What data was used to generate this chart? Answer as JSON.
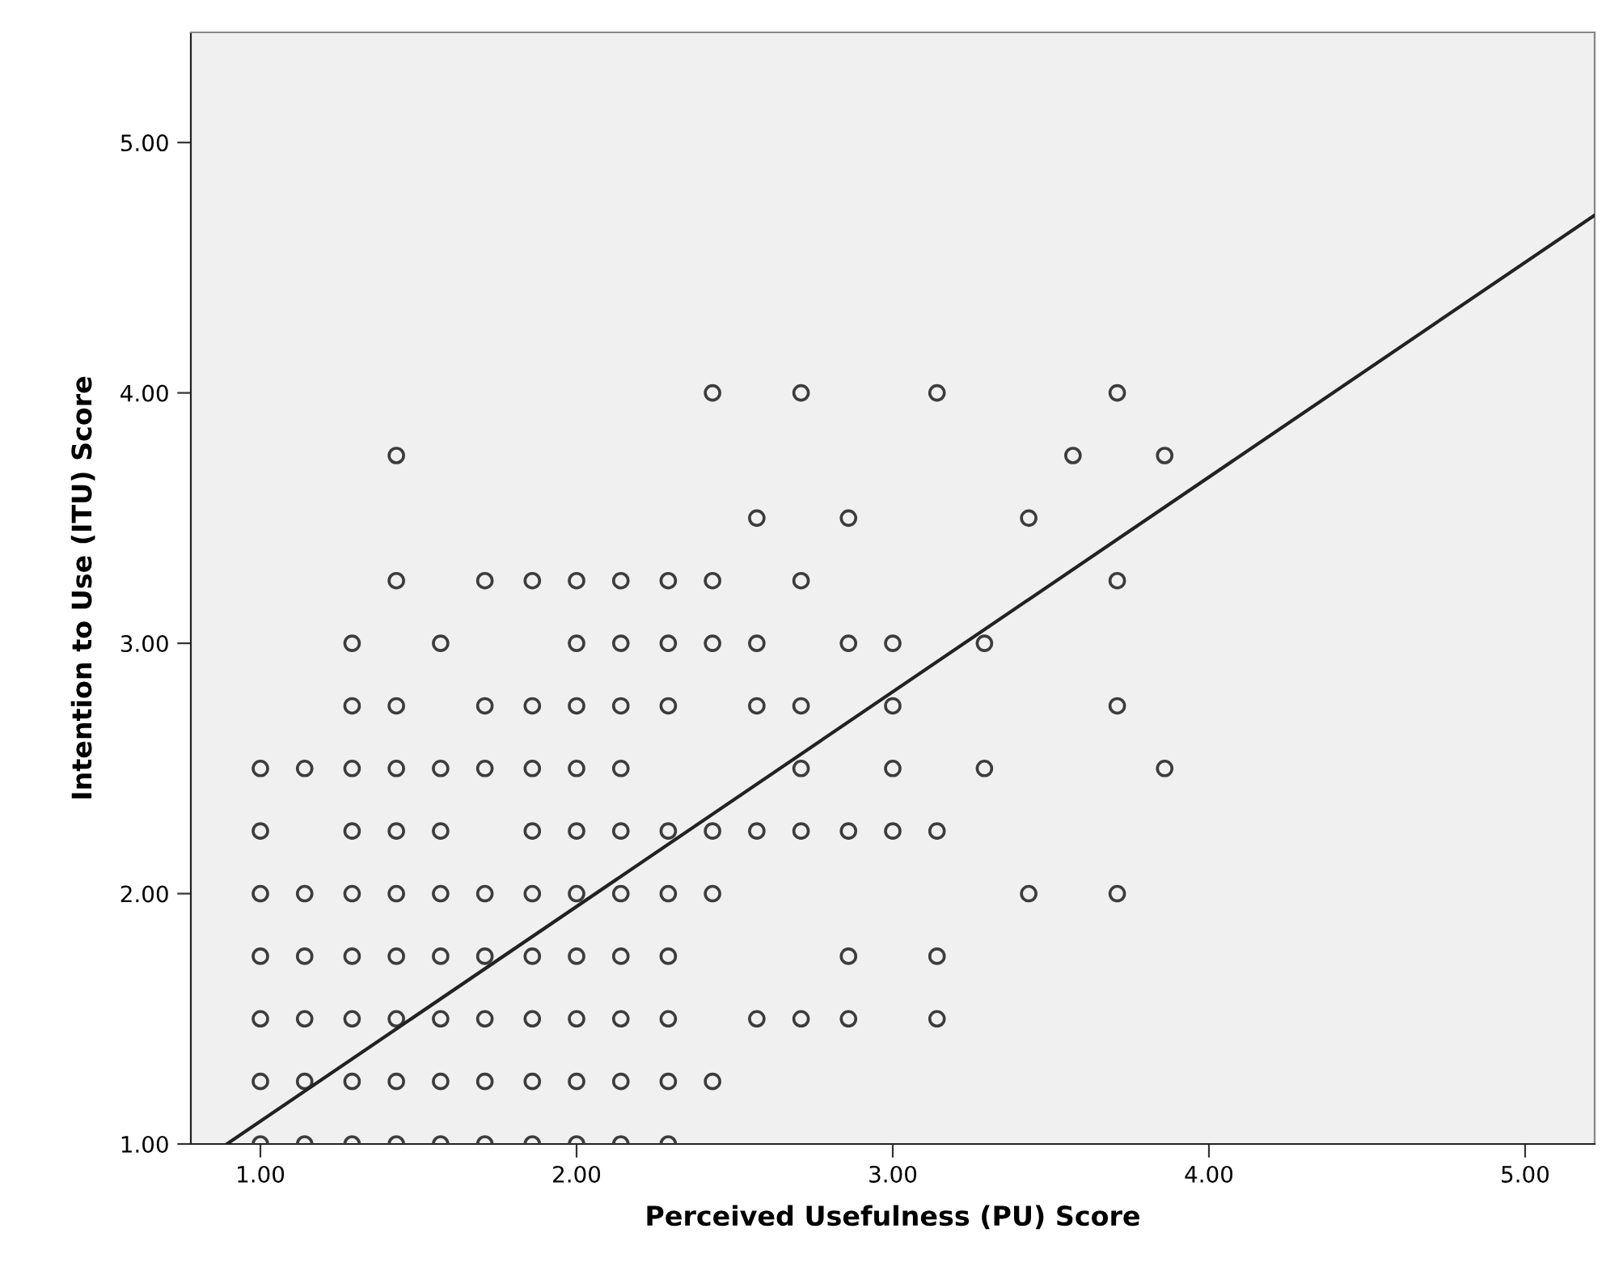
{
  "chart_data": {
    "type": "scatter",
    "xlabel": "Perceived Usefulness (PU) Score",
    "ylabel": "Intention to Use (ITU) Score",
    "xlim": [
      0.78,
      5.22
    ],
    "ylim": [
      1.0,
      5.44
    ],
    "xticks": [
      {
        "value": 1,
        "label": "1.00"
      },
      {
        "value": 2,
        "label": "2.00"
      },
      {
        "value": 3,
        "label": "3.00"
      },
      {
        "value": 4,
        "label": "4.00"
      },
      {
        "value": 5,
        "label": "5.00"
      }
    ],
    "yticks": [
      {
        "value": 1,
        "label": "1.00"
      },
      {
        "value": 2,
        "label": "2.00"
      },
      {
        "value": 3,
        "label": "3.00"
      },
      {
        "value": 4,
        "label": "4.00"
      },
      {
        "value": 5,
        "label": "5.00"
      }
    ],
    "grid": false,
    "legend": false,
    "marker": "circle",
    "series": [
      {
        "color": "#3c3c3c",
        "x": [
          2.43,
          2.71,
          3.14,
          3.71,
          1.43,
          3.57,
          3.86,
          2.57,
          2.86,
          3.43,
          1.43,
          1.71,
          1.86,
          2.0,
          2.14,
          2.29,
          2.43,
          2.71,
          3.71,
          1.29,
          1.57,
          2.0,
          2.14,
          2.29,
          2.43,
          2.57,
          2.86,
          3.0,
          3.29,
          1.29,
          1.43,
          1.71,
          1.86,
          2.0,
          2.14,
          2.29,
          2.57,
          2.71,
          3.0,
          3.71,
          1.0,
          1.14,
          1.29,
          1.43,
          1.57,
          1.71,
          1.86,
          2.0,
          2.14,
          2.71,
          3.0,
          3.29,
          3.86,
          1.0,
          1.29,
          1.43,
          1.57,
          1.86,
          2.0,
          2.14,
          2.29,
          2.43,
          2.57,
          2.71,
          2.86,
          3.0,
          3.14,
          1.0,
          1.14,
          1.29,
          1.43,
          1.57,
          1.71,
          1.86,
          2.0,
          2.14,
          2.29,
          2.43,
          3.43,
          3.71,
          1.0,
          1.14,
          1.29,
          1.43,
          1.57,
          1.71,
          1.86,
          2.0,
          2.14,
          2.29,
          2.86,
          3.14,
          1.0,
          1.14,
          1.29,
          1.43,
          1.57,
          1.71,
          1.86,
          2.0,
          2.14,
          2.29,
          2.57,
          2.71,
          2.86,
          3.14,
          1.0,
          1.14,
          1.29,
          1.43,
          1.57,
          1.71,
          1.86,
          2.0,
          2.14,
          2.29,
          2.43,
          1.0,
          1.14,
          1.29,
          1.43,
          1.57,
          1.71,
          1.86,
          2.0,
          2.14,
          2.29
        ],
        "values": [
          4,
          4,
          4,
          4,
          3.75,
          3.75,
          3.75,
          3.5,
          3.5,
          3.5,
          3.25,
          3.25,
          3.25,
          3.25,
          3.25,
          3.25,
          3.25,
          3.25,
          3.25,
          3,
          3,
          3,
          3,
          3,
          3,
          3,
          3,
          3,
          3,
          2.75,
          2.75,
          2.75,
          2.75,
          2.75,
          2.75,
          2.75,
          2.75,
          2.75,
          2.75,
          2.75,
          2.5,
          2.5,
          2.5,
          2.5,
          2.5,
          2.5,
          2.5,
          2.5,
          2.5,
          2.5,
          2.5,
          2.5,
          2.5,
          2.25,
          2.25,
          2.25,
          2.25,
          2.25,
          2.25,
          2.25,
          2.25,
          2.25,
          2.25,
          2.25,
          2.25,
          2.25,
          2.25,
          2,
          2,
          2,
          2,
          2,
          2,
          2,
          2,
          2,
          2,
          2,
          2,
          2,
          1.75,
          1.75,
          1.75,
          1.75,
          1.75,
          1.75,
          1.75,
          1.75,
          1.75,
          1.75,
          1.75,
          1.75,
          1.5,
          1.5,
          1.5,
          1.5,
          1.5,
          1.5,
          1.5,
          1.5,
          1.5,
          1.5,
          1.5,
          1.5,
          1.5,
          1.5,
          1.25,
          1.25,
          1.25,
          1.25,
          1.25,
          1.25,
          1.25,
          1.25,
          1.25,
          1.25,
          1.25,
          1,
          1,
          1,
          1,
          1,
          1,
          1,
          1,
          1,
          1
        ]
      },
      {
        "type": "line",
        "marker": "none",
        "color": "#222222",
        "x": [
          0.894,
          5.22
        ],
        "values": [
          1.0,
          4.71
        ]
      }
    ]
  }
}
